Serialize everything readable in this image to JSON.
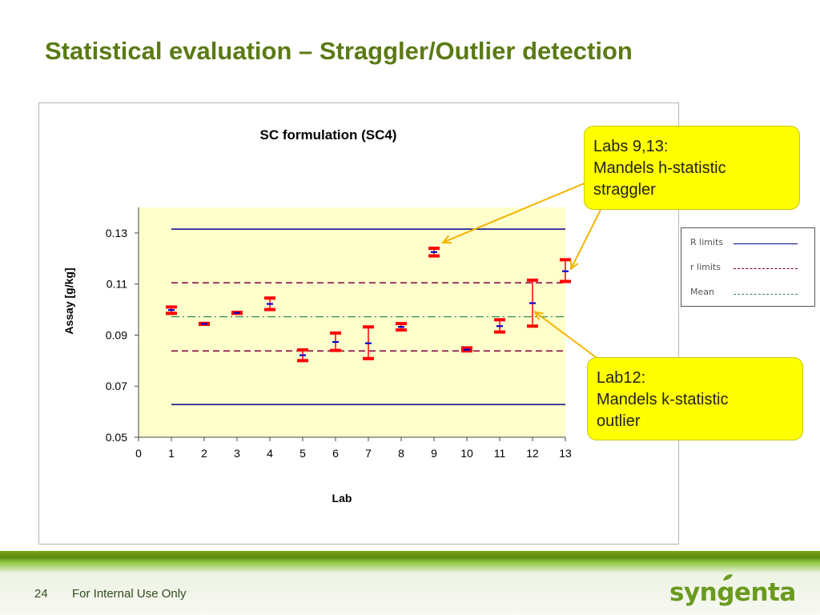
{
  "slide": {
    "title": "Statistical evaluation – Straggler/Outlier detection",
    "page_number": "24",
    "footer_text": "For Internal Use Only",
    "logo_text": "syngenta"
  },
  "colors": {
    "title": "#5a7a14",
    "plot_background": "#ffffcc",
    "R_limits": "#00008b",
    "r_limits": "#800040",
    "mean": "#2e8b57",
    "range_bar": "#ff0000",
    "lab_mean_tick": "#0000cd",
    "callout_fill": "#ffff00",
    "arrow": "#f4b400"
  },
  "callouts": [
    {
      "lines": [
        "Labs 9,13:",
        "Mandels h-statistic",
        "straggler"
      ]
    },
    {
      "lines": [
        "Lab12:",
        "Mandels k-statistic",
        "outlier"
      ]
    }
  ],
  "legend": {
    "items": [
      {
        "label": "R limits",
        "style": "solid"
      },
      {
        "label": "r limits",
        "style": "dashed"
      },
      {
        "label": "Mean",
        "style": "dash-dot"
      }
    ]
  },
  "chart_data": {
    "type": "scatter",
    "title": "SC formulation (SC4)",
    "xlabel": "Lab",
    "ylabel": "Assay [g/kg]",
    "xlim": [
      0,
      13
    ],
    "ylim": [
      0.05,
      0.14
    ],
    "x_ticks": [
      "0",
      "1",
      "2",
      "3",
      "4",
      "5",
      "6",
      "7",
      "8",
      "9",
      "10",
      "11",
      "12",
      "13"
    ],
    "y_ticks": [
      "0.05",
      "0.07",
      "0.09",
      "0.11",
      "0.13"
    ],
    "grid": false,
    "reference_lines": [
      {
        "name": "R limits",
        "style": "solid",
        "values": [
          0.1315,
          0.0628
        ]
      },
      {
        "name": "r limits",
        "style": "dashed",
        "values": [
          0.1105,
          0.0838
        ]
      },
      {
        "name": "Mean",
        "style": "dash-dot",
        "values": [
          0.0972
        ]
      }
    ],
    "labs": [
      {
        "lab": 1,
        "min": 0.0985,
        "max": 0.101,
        "mean": 0.0998
      },
      {
        "lab": 2,
        "min": 0.0942,
        "max": 0.0946,
        "mean": 0.0944
      },
      {
        "lab": 3,
        "min": 0.0985,
        "max": 0.0989,
        "mean": 0.0987
      },
      {
        "lab": 4,
        "min": 0.1,
        "max": 0.1045,
        "mean": 0.1022
      },
      {
        "lab": 5,
        "min": 0.08,
        "max": 0.0842,
        "mean": 0.0821
      },
      {
        "lab": 6,
        "min": 0.084,
        "max": 0.0908,
        "mean": 0.0873
      },
      {
        "lab": 7,
        "min": 0.0808,
        "max": 0.0932,
        "mean": 0.0868
      },
      {
        "lab": 8,
        "min": 0.092,
        "max": 0.0945,
        "mean": 0.0932
      },
      {
        "lab": 9,
        "min": 0.121,
        "max": 0.124,
        "mean": 0.1225
      },
      {
        "lab": 10,
        "min": 0.0838,
        "max": 0.085,
        "mean": 0.0843
      },
      {
        "lab": 11,
        "min": 0.0912,
        "max": 0.096,
        "mean": 0.0935
      },
      {
        "lab": 12,
        "min": 0.0935,
        "max": 0.1115,
        "mean": 0.1025
      },
      {
        "lab": 13,
        "min": 0.111,
        "max": 0.1195,
        "mean": 0.115
      }
    ]
  }
}
